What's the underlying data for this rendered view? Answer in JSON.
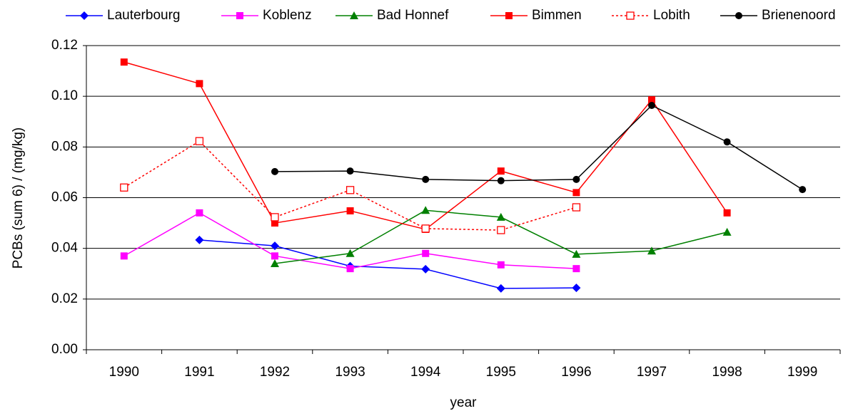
{
  "chart_data": {
    "type": "line",
    "y_label": "PCBs (sum 6) / (mg/kg)",
    "x_label": "year",
    "categories": [
      "1990",
      "1991",
      "1992",
      "1993",
      "1994",
      "1995",
      "1996",
      "1997",
      "1998",
      "1999"
    ],
    "ylim": [
      0,
      0.12
    ],
    "yticks": [
      {
        "value": 0,
        "label": "0.00"
      },
      0.02,
      0.04,
      0.06,
      0.08,
      {
        "value": 0.1,
        "label": "0.10"
      },
      0.12
    ],
    "grid": true,
    "legend": "top",
    "series": [
      {
        "name": "Lauterbourg",
        "color": "#0000ff",
        "marker": "diamond",
        "values": [
          null,
          0.0433,
          0.041,
          0.033,
          0.0318,
          0.0242,
          0.0244,
          null,
          null,
          null
        ]
      },
      {
        "name": "Koblenz",
        "color": "#ff00ff",
        "marker": "square",
        "values": [
          0.037,
          0.054,
          0.037,
          0.032,
          0.038,
          0.0335,
          0.032,
          null,
          null,
          null
        ]
      },
      {
        "name": "Bad Honnef",
        "color": "#008000",
        "marker": "triangle",
        "values": [
          null,
          null,
          0.034,
          0.038,
          0.055,
          0.0523,
          0.0377,
          0.039,
          0.0464,
          null
        ]
      },
      {
        "name": "Bimmen",
        "color": "#ff0000",
        "marker": "square",
        "values": [
          0.1135,
          0.105,
          0.05,
          0.0548,
          0.0475,
          0.0705,
          0.062,
          0.0986,
          0.054,
          null
        ]
      },
      {
        "name": "Lobith",
        "color": "#ff0000",
        "marker": "open-square",
        "dashed": true,
        "values": [
          0.064,
          0.0823,
          0.0523,
          0.063,
          0.0478,
          0.0472,
          0.0562,
          null,
          null,
          null
        ]
      },
      {
        "name": "Brienenoord",
        "color": "#000000",
        "marker": "circle",
        "values": [
          null,
          null,
          0.0703,
          0.0705,
          0.0672,
          0.0667,
          0.0672,
          0.0964,
          0.082,
          0.0632
        ]
      }
    ]
  }
}
